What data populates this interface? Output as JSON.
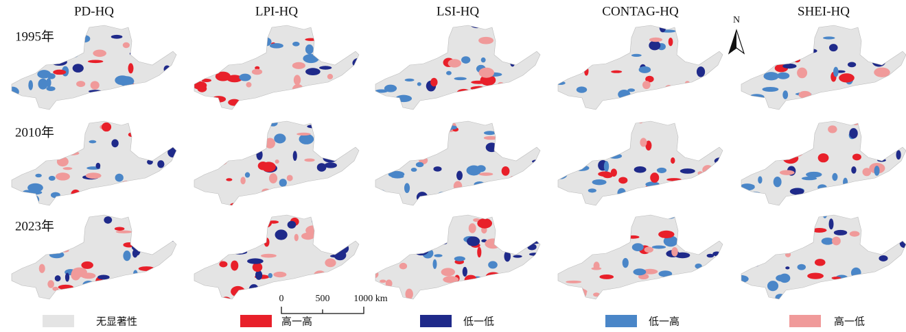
{
  "columns": [
    "PD-HQ",
    "LPI-HQ",
    "LSI-HQ",
    "CONTAG-HQ",
    "SHEI-HQ"
  ],
  "rows": [
    "1995年",
    "2010年",
    "2023年"
  ],
  "north": "N",
  "scale_bar": [
    "0",
    "500",
    "1000 km"
  ],
  "legend": [
    {
      "label": "无显著性",
      "color": "#e4e4e4"
    },
    {
      "label": "高一高",
      "color": "#e8202a"
    },
    {
      "label": "低一低",
      "color": "#1f2a8a"
    },
    {
      "label": "低一高",
      "color": "#4a86c8"
    },
    {
      "label": "高一低",
      "color": "#f09a9a"
    }
  ]
}
